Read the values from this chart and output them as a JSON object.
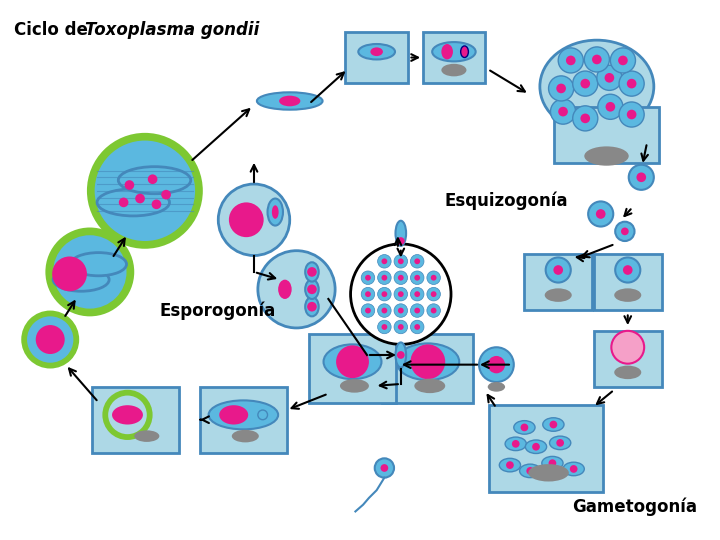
{
  "bg_color": "#ffffff",
  "CB": "#add8e6",
  "DB": "#4488bb",
  "GR": "#7dc832",
  "PK": "#e8198b",
  "LPK": "#f5a0c8",
  "GY": "#888888",
  "BLU": "#5bb8e0",
  "title": "Ciclo de ",
  "title_italic": "Toxoplasma gondii",
  "label_esquizogonia": "Esquizogonía",
  "label_esporogonia": "Esporogonía",
  "label_gametogonia": "Gametogonía"
}
